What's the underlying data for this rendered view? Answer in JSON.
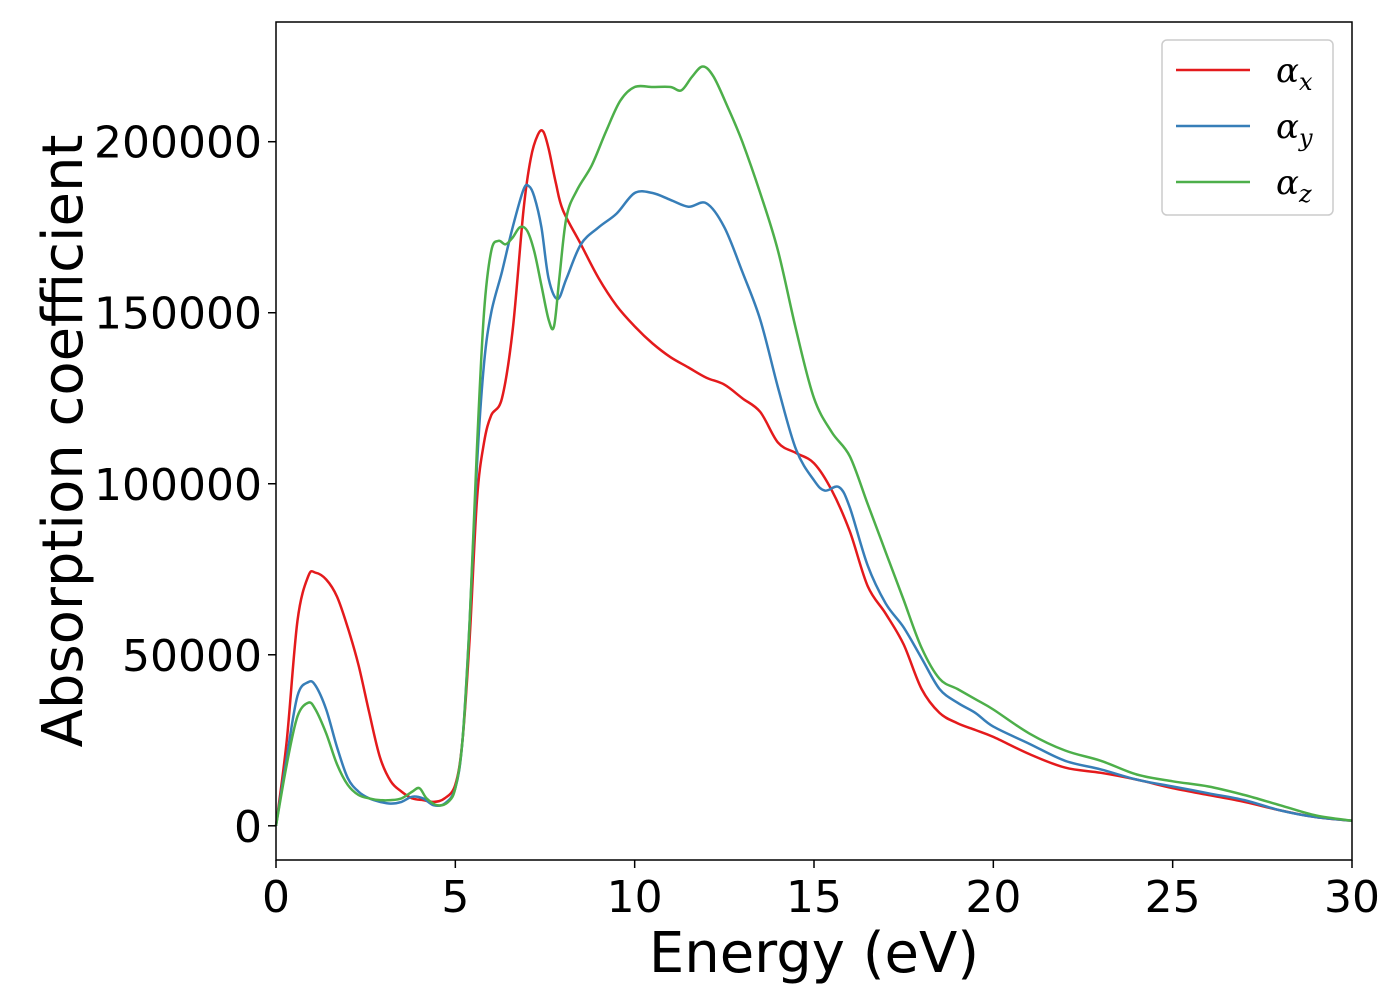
{
  "chart_data": {
    "type": "line",
    "title": "",
    "xlabel": "Energy (eV)",
    "ylabel": "Absorption coefficient",
    "xlim": [
      0,
      30
    ],
    "ylim": [
      -10000,
      235000
    ],
    "xticks": [
      0,
      5,
      10,
      15,
      20,
      25,
      30
    ],
    "yticks": [
      0,
      50000,
      100000,
      150000,
      200000
    ],
    "grid": false,
    "legend_position": "top-right",
    "series": [
      {
        "name": "α_x",
        "label_base": "α",
        "label_sub": "x",
        "color": "#e41a1c",
        "x": [
          0,
          0.3,
          0.6,
          0.9,
          1.1,
          1.4,
          1.7,
          2.0,
          2.3,
          2.6,
          2.9,
          3.2,
          3.5,
          3.8,
          4.1,
          4.4,
          4.7,
          5.0,
          5.2,
          5.4,
          5.6,
          5.8,
          6.0,
          6.3,
          6.6,
          6.9,
          7.1,
          7.3,
          7.45,
          7.6,
          7.8,
          8.0,
          8.5,
          9.0,
          9.5,
          10.0,
          10.5,
          11.0,
          11.5,
          12.0,
          12.5,
          13.0,
          13.5,
          14.0,
          14.5,
          15.0,
          15.5,
          16.0,
          16.5,
          17.0,
          17.5,
          18.0,
          18.5,
          19.0,
          19.5,
          20.0,
          21.0,
          22.0,
          23.0,
          24.0,
          25.0,
          26.0,
          27.0,
          28.0,
          29.0,
          30.0
        ],
        "y": [
          0,
          25000,
          60000,
          73000,
          74000,
          72000,
          67000,
          58000,
          47000,
          33000,
          20000,
          13000,
          10000,
          8000,
          7500,
          7000,
          8000,
          12000,
          25000,
          55000,
          95000,
          112000,
          120000,
          125000,
          145000,
          180000,
          195000,
          202000,
          203000,
          198000,
          188000,
          180000,
          170000,
          160000,
          152000,
          146000,
          141000,
          137000,
          134000,
          131000,
          129000,
          125000,
          121000,
          112000,
          109000,
          106000,
          98000,
          86000,
          70000,
          62000,
          53000,
          40000,
          33000,
          30000,
          28000,
          26000,
          21000,
          17000,
          15500,
          13500,
          11000,
          9000,
          7000,
          4500,
          2500,
          1500
        ]
      },
      {
        "name": "α_y",
        "label_base": "α",
        "label_sub": "y",
        "color": "#377eb8",
        "x": [
          0,
          0.3,
          0.6,
          0.9,
          1.1,
          1.4,
          1.7,
          2.0,
          2.3,
          2.6,
          2.9,
          3.2,
          3.5,
          3.8,
          4.1,
          4.4,
          4.7,
          5.0,
          5.2,
          5.4,
          5.6,
          5.8,
          6.0,
          6.3,
          6.6,
          6.9,
          7.05,
          7.2,
          7.4,
          7.6,
          7.85,
          8.1,
          8.5,
          9.0,
          9.5,
          10.0,
          10.5,
          11.0,
          11.5,
          12.0,
          12.5,
          13.0,
          13.5,
          14.0,
          14.5,
          15.0,
          15.3,
          15.7,
          16.0,
          16.5,
          17.0,
          17.5,
          18.0,
          18.5,
          19.0,
          19.5,
          20.0,
          21.0,
          22.0,
          23.0,
          24.0,
          25.0,
          26.0,
          27.0,
          28.0,
          29.0,
          30.0
        ],
        "y": [
          0,
          20000,
          38000,
          42000,
          41000,
          34000,
          23000,
          14000,
          10000,
          8000,
          7000,
          6500,
          7000,
          8500,
          8000,
          6000,
          6500,
          11000,
          25000,
          60000,
          105000,
          135000,
          150000,
          162000,
          175000,
          186000,
          187000,
          184000,
          175000,
          160000,
          154000,
          160000,
          170000,
          175000,
          179000,
          185000,
          185000,
          183000,
          181000,
          182000,
          175000,
          162000,
          148000,
          128000,
          110000,
          101000,
          98000,
          99000,
          93000,
          76000,
          65000,
          58000,
          49000,
          40000,
          36000,
          33000,
          29000,
          24000,
          19000,
          16500,
          13500,
          11500,
          9500,
          7500,
          4500,
          2500,
          1500
        ]
      },
      {
        "name": "α_z",
        "label_base": "α",
        "label_sub": "z",
        "color": "#4daf4a",
        "x": [
          0,
          0.3,
          0.6,
          0.9,
          1.1,
          1.4,
          1.7,
          2.0,
          2.3,
          2.6,
          2.9,
          3.2,
          3.5,
          3.8,
          4.0,
          4.2,
          4.5,
          4.8,
          5.0,
          5.2,
          5.4,
          5.6,
          5.8,
          6.0,
          6.2,
          6.4,
          6.6,
          6.8,
          7.0,
          7.2,
          7.4,
          7.6,
          7.75,
          7.9,
          8.1,
          8.4,
          8.8,
          9.2,
          9.6,
          10.0,
          10.5,
          11.0,
          11.3,
          11.6,
          11.9,
          12.2,
          12.6,
          13.0,
          13.5,
          14.0,
          14.5,
          15.0,
          15.5,
          16.0,
          16.5,
          17.0,
          17.5,
          18.0,
          18.5,
          19.0,
          19.5,
          20.0,
          21.0,
          22.0,
          23.0,
          24.0,
          25.0,
          26.0,
          27.0,
          28.0,
          29.0,
          30.0
        ],
        "y": [
          0,
          18000,
          32000,
          36000,
          34000,
          27000,
          18000,
          12000,
          9000,
          8000,
          7500,
          7500,
          8000,
          10000,
          11000,
          8000,
          6000,
          7000,
          11000,
          25000,
          60000,
          110000,
          150000,
          168000,
          171000,
          170000,
          172000,
          175000,
          174000,
          168000,
          158000,
          148000,
          146000,
          160000,
          178000,
          186000,
          193000,
          203000,
          212000,
          216000,
          216000,
          216000,
          215000,
          219000,
          222000,
          219000,
          210000,
          200000,
          185000,
          168000,
          145000,
          125000,
          115000,
          108000,
          94000,
          80000,
          66000,
          52000,
          43000,
          40000,
          37000,
          34000,
          27000,
          22000,
          19000,
          15000,
          13000,
          11500,
          9000,
          6000,
          3000,
          1500
        ]
      }
    ]
  }
}
